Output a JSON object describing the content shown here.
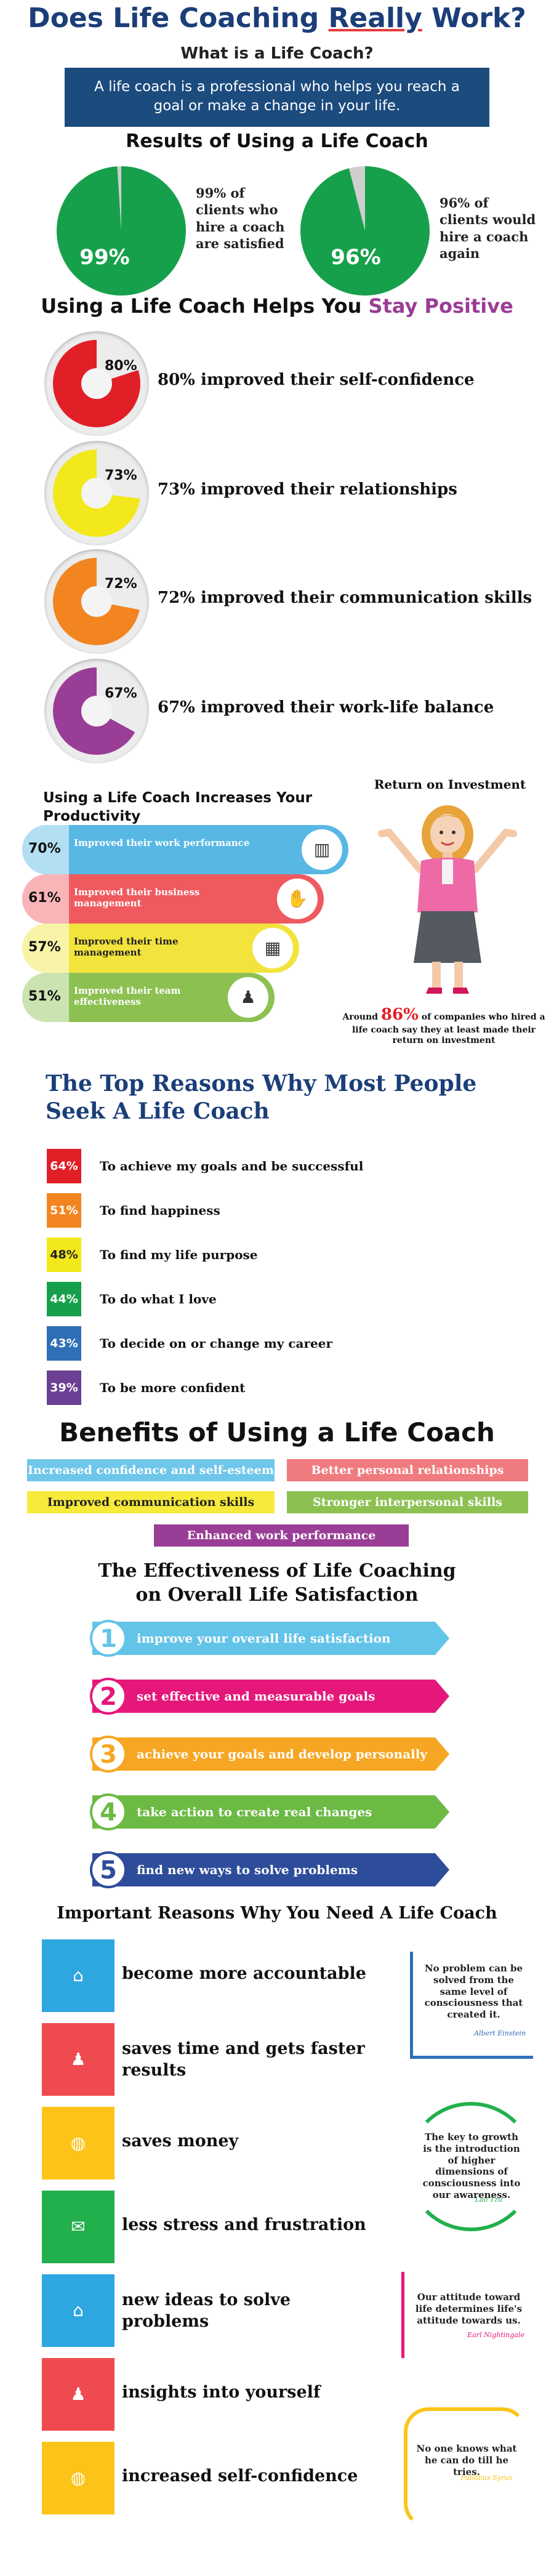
{
  "header": {
    "title_pre": "Does Life Coaching ",
    "title_em": "Really",
    "title_post": " Work?",
    "what_title": "What is a Life Coach?",
    "what_text": "A life coach is a professional who helps you reach a goal or make a change in your life."
  },
  "results": {
    "title": "Results of Using a Life Coach",
    "items": [
      {
        "value": 99,
        "label": "99%",
        "desc": "99% of clients who hire a coach are satisfied",
        "color": "#17a04b"
      },
      {
        "value": 96,
        "label": "96%",
        "desc": "96% of clients would hire a coach again",
        "color": "#17a04b"
      }
    ]
  },
  "positive": {
    "title_pre": "Using a Life Coach Helps You ",
    "title_em": "Stay Positive",
    "em_color": "#9a3d96",
    "items": [
      {
        "value": 80,
        "label": "80%",
        "text": "80% improved their self-confidence",
        "color": "#e11f26"
      },
      {
        "value": 73,
        "label": "73%",
        "text": "73% improved their relationships",
        "color": "#f2e81c"
      },
      {
        "value": 72,
        "label": "72%",
        "text": "72% improved their communication skills",
        "color": "#f28520"
      },
      {
        "value": 67,
        "label": "67%",
        "text": "67% improved their work-life balance",
        "color": "#9a3d96"
      }
    ]
  },
  "productivity": {
    "title": "Using a Life Coach Increases Your Productivity",
    "items": [
      {
        "label": "70%",
        "text": "Improved their work performance",
        "color": "#58b8e4",
        "icon": "chart-icon",
        "glyph": "▥"
      },
      {
        "label": "61%",
        "text": "Improved their business management",
        "color": "#ef5a5f",
        "icon": "handshake-icon",
        "glyph": "✋"
      },
      {
        "label": "57%",
        "text": "Improved their time management",
        "color": "#f2e43c",
        "icon": "calendar-icon",
        "glyph": "▦"
      },
      {
        "label": "51%",
        "text": "Improved their team effectiveness",
        "color": "#8cc152",
        "icon": "team-icon",
        "glyph": "♟"
      }
    ]
  },
  "roi": {
    "title": "Return on Investment",
    "text_pre": "Around ",
    "text_em": "86%",
    "text_post": " of companies who hired a life coach say they at least made their return on investment"
  },
  "reasons": {
    "title": "The Top Reasons Why Most People Seek A Life Coach",
    "items": [
      {
        "label": "64%",
        "text": "To achieve my goals and be successful",
        "color": "#e11f26"
      },
      {
        "label": "51%",
        "text": "To find happiness",
        "color": "#f28520"
      },
      {
        "label": "48%",
        "text": "To find my life purpose",
        "color": "#f2e81c"
      },
      {
        "label": "44%",
        "text": "To do what I love",
        "color": "#17a04b"
      },
      {
        "label": "43%",
        "text": "To decide on or change my career",
        "color": "#2e6fb7"
      },
      {
        "label": "39%",
        "text": "To be more confident",
        "color": "#6a3f94"
      }
    ]
  },
  "benefits": {
    "title": "Benefits of Using a Life Coach",
    "items": [
      {
        "text": "Increased confidence and self-esteem",
        "color": "#6ec6ea"
      },
      {
        "text": "Better personal relationships",
        "color": "#f07b7e"
      },
      {
        "text": "Improved communication skills",
        "color": "#f7ea3a"
      },
      {
        "text": "Stronger interpersonal skills",
        "color": "#8cc152"
      },
      {
        "text": "Enhanced work performance",
        "color": "#9a3d96"
      }
    ]
  },
  "effectiveness": {
    "title": "The Effectiveness of Life Coaching on Overall Life Satisfaction",
    "items": [
      {
        "num": "1",
        "text": "improve your overall life satisfaction",
        "color": "#62c4e8"
      },
      {
        "num": "2",
        "text": "set effective and measurable goals",
        "color": "#e6177a"
      },
      {
        "num": "3",
        "text": "achieve your goals and develop personally",
        "color": "#f6a623"
      },
      {
        "num": "4",
        "text": "take action to create real changes",
        "color": "#6cba44"
      },
      {
        "num": "5",
        "text": "find new ways to solve problems",
        "color": "#2d4c9a"
      }
    ]
  },
  "needs": {
    "title": "Important Reasons Why You Need A Life Coach",
    "items": [
      {
        "text": "become more accountable",
        "color": "#2ea6e0",
        "icon": "home-icon",
        "glyph": "⌂"
      },
      {
        "text": "saves time and gets faster results",
        "color": "#ef4a4f",
        "icon": "people-icon",
        "glyph": "♟"
      },
      {
        "text": "saves  money",
        "color": "#fcc419",
        "icon": "globe-icon",
        "glyph": "◍"
      },
      {
        "text": "less stress and frustration",
        "color": "#22b04c",
        "icon": "chat-icon",
        "glyph": "✉"
      },
      {
        "text": "new ideas to solve problems",
        "color": "#2ea6e0",
        "icon": "home-icon",
        "glyph": "⌂"
      },
      {
        "text": "insights into yourself",
        "color": "#ef4a4f",
        "icon": "people-icon",
        "glyph": "♟"
      },
      {
        "text": "increased  self-confidence",
        "color": "#fcc419",
        "icon": "globe-icon",
        "glyph": "◍"
      }
    ],
    "quotes": [
      {
        "text": "No problem can be solved from the same level of consciousness that created it.",
        "author": "Albert Einstein",
        "color": "#2e6fb7"
      },
      {
        "text": "The key to growth is the introduction of higher dimensions of consciousness into our awareness.",
        "author": "Lao Tzu",
        "color": "#22b04c"
      },
      {
        "text": "Our attitude toward life determines life's attitude towards us.",
        "author": "Earl Nightingale",
        "color": "#e6177a"
      },
      {
        "text": "No one knows what he can do till he tries.",
        "author": "Publilius Syrus",
        "color": "#fcc419"
      }
    ]
  }
}
